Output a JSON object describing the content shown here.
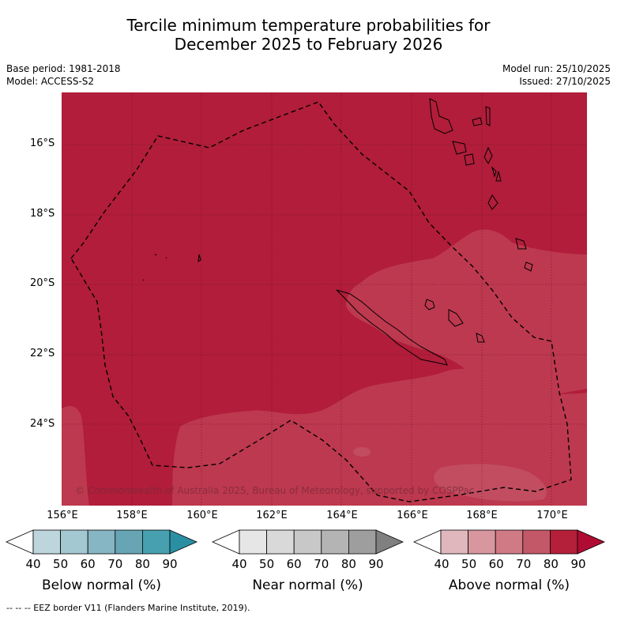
{
  "title_line1": "Tercile minimum temperature probabilities for",
  "title_line2": "December 2025 to February 2026",
  "base_period": "Base period: 1981-2018",
  "model": "Model: ACCESS-S2",
  "model_run": "Model run: 25/10/2025",
  "issued": "Issued: 27/10/2025",
  "y_axis": [
    "16°S",
    "18°S",
    "20°S",
    "22°S",
    "24°S"
  ],
  "x_axis": [
    "156°E",
    "158°E",
    "160°E",
    "162°E",
    "164°E",
    "166°E",
    "168°E",
    "170°E"
  ],
  "copyright": "© Commonwealth of Australia 2025, Bureau of Meteorology, supported by COSPPac",
  "legends": {
    "below": {
      "title": "Below normal (%)",
      "ticks": [
        "40",
        "50",
        "60",
        "70",
        "80",
        "90"
      ],
      "colors": [
        "#ffffff",
        "#bdd5dc",
        "#a4c8d1",
        "#86b5c3",
        "#67a5b5",
        "#47a0b0",
        "#2b8fa3"
      ]
    },
    "near": {
      "title": "Near normal (%)",
      "ticks": [
        "40",
        "50",
        "60",
        "70",
        "80",
        "90"
      ],
      "colors": [
        "#ffffff",
        "#e6e6e6",
        "#d9d9d9",
        "#c8c8c8",
        "#b4b4b4",
        "#9e9e9e",
        "#808080"
      ]
    },
    "above": {
      "title": "Above normal (%)",
      "ticks": [
        "40",
        "50",
        "60",
        "70",
        "80",
        "90"
      ],
      "colors": [
        "#ffffff",
        "#dfb7bd",
        "#d8969e",
        "#cf7a85",
        "#c35868",
        "#b41f3a",
        "#b00c33"
      ]
    }
  },
  "footnote": "-- -- -- EEZ border V11 (Flanders Marine Institute, 2019).",
  "map_colors": {
    "high": "#b11d3a",
    "mid": "#bd394f",
    "light": "#c24d60"
  }
}
